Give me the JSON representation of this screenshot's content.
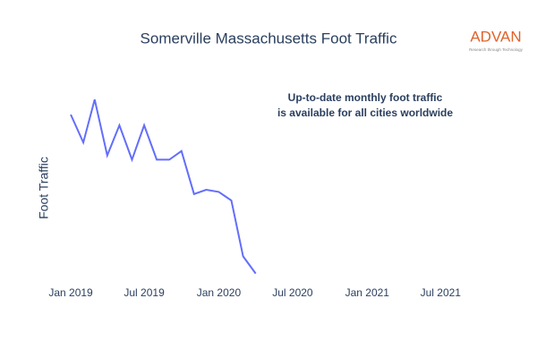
{
  "chart_data": {
    "type": "line",
    "title": "Somerville Massachusetts Foot Traffic",
    "y_label": "Foot Traffic",
    "annotation": [
      "Up-to-date monthly foot traffic",
      "is available for all cities worldwide"
    ],
    "logo": {
      "name": "ADVAN",
      "tagline": "Research through Technology"
    },
    "x": [
      "2019-01",
      "2019-02",
      "2019-03",
      "2019-04",
      "2019-05",
      "2019-06",
      "2019-07",
      "2019-08",
      "2019-09",
      "2019-10",
      "2019-11",
      "2019-12",
      "2020-01",
      "2020-02",
      "2020-03",
      "2020-04"
    ],
    "series": [
      {
        "name": "Foot Traffic",
        "color": "#636efa",
        "values": [
          80,
          67,
          87,
          61,
          75,
          59,
          75,
          59,
          59,
          63,
          43,
          45,
          44,
          40,
          14,
          6
        ]
      }
    ],
    "xlim": [
      "2018-12",
      "2021-10"
    ],
    "xticks": [
      {
        "value": "2019-01",
        "label": "Jan 2019"
      },
      {
        "value": "2019-07",
        "label": "Jul 2019"
      },
      {
        "value": "2020-01",
        "label": "Jan 2020"
      },
      {
        "value": "2020-07",
        "label": "Jul 2020"
      },
      {
        "value": "2021-01",
        "label": "Jan 2021"
      },
      {
        "value": "2021-07",
        "label": "Jul 2021"
      }
    ],
    "ylim": [
      0,
      100
    ]
  }
}
